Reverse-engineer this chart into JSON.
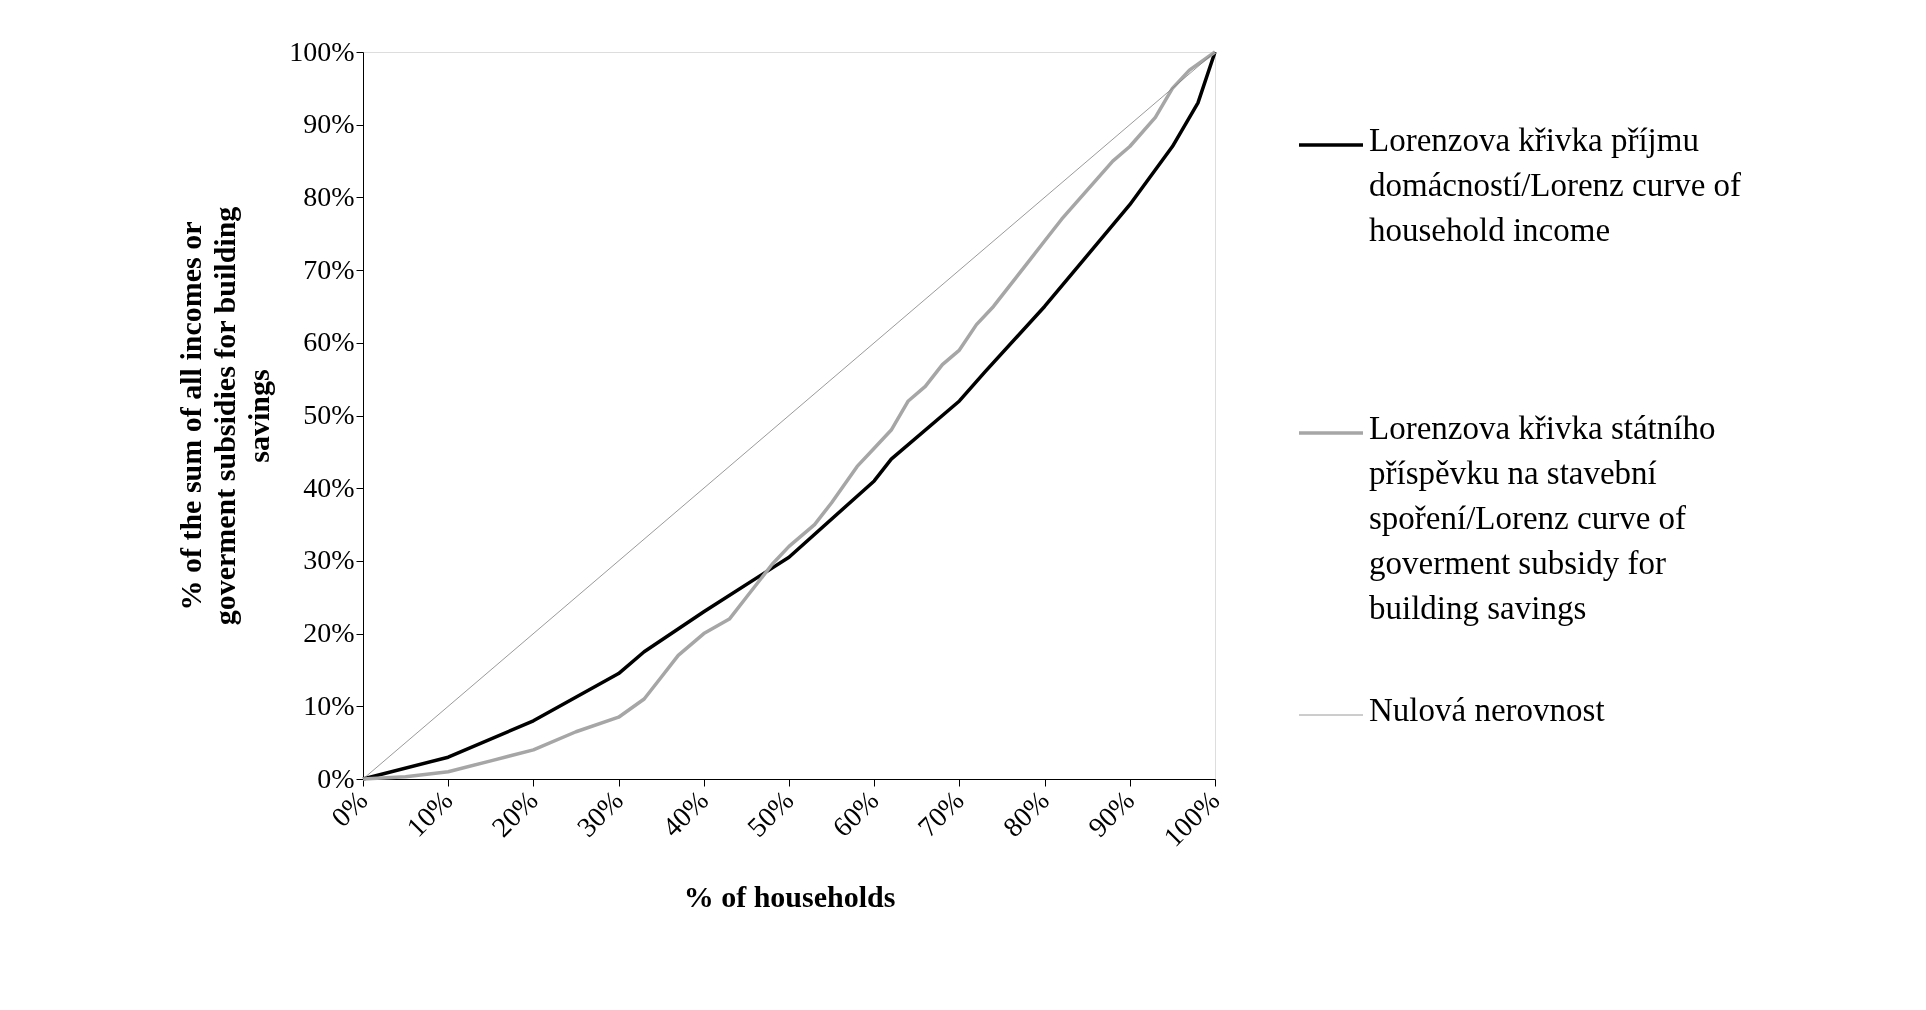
{
  "chart_data": {
    "type": "line",
    "xlabel": "% of  households",
    "ylabel": "% of the sum of  all incomes or goverment subsidies for building savings",
    "xlim": [
      0,
      100
    ],
    "ylim": [
      0,
      100
    ],
    "xticks": [
      {
        "value": 0,
        "label": "0%"
      },
      {
        "value": 10,
        "label": "10%"
      },
      {
        "value": 20,
        "label": "20%"
      },
      {
        "value": 30,
        "label": "30%"
      },
      {
        "value": 40,
        "label": "40%"
      },
      {
        "value": 50,
        "label": "50%"
      },
      {
        "value": 60,
        "label": "60%"
      },
      {
        "value": 70,
        "label": "70%"
      },
      {
        "value": 80,
        "label": "80%"
      },
      {
        "value": 90,
        "label": "90%"
      },
      {
        "value": 100,
        "label": "100%"
      }
    ],
    "yticks": [
      {
        "value": 0,
        "label": "0%"
      },
      {
        "value": 10,
        "label": "10%"
      },
      {
        "value": 20,
        "label": "20%"
      },
      {
        "value": 30,
        "label": "30%"
      },
      {
        "value": 40,
        "label": "40%"
      },
      {
        "value": 50,
        "label": "50%"
      },
      {
        "value": 60,
        "label": "60%"
      },
      {
        "value": 70,
        "label": "70%"
      },
      {
        "value": 80,
        "label": "80%"
      },
      {
        "value": 90,
        "label": "90%"
      },
      {
        "value": 100,
        "label": "100%"
      }
    ],
    "grid": false,
    "legend": "right",
    "marker": "none",
    "line_style": "solid",
    "series": [
      {
        "name": "Lorenzova křivka příjmu domácností/Lorenz curve of household income",
        "color": "#000000",
        "x": [
          0,
          10,
          20,
          30,
          33,
          40,
          50,
          60,
          62,
          70,
          73,
          80,
          90,
          95,
          98,
          100
        ],
        "values": [
          0,
          3,
          8,
          14.5,
          17.5,
          23,
          30.5,
          41,
          44,
          52,
          56,
          65,
          79,
          87,
          93,
          100
        ]
      },
      {
        "name": "Lorenzova křivka státního příspěvku na stavební spoření/Lorenz curve of goverment subsidy for building savings",
        "color": "#a6a6a6",
        "x": [
          0,
          5,
          10,
          15,
          20,
          25,
          30,
          33,
          35,
          37,
          40,
          43,
          45,
          48,
          50,
          53,
          55,
          58,
          60,
          62,
          64,
          66,
          68,
          70,
          72,
          74,
          76,
          78,
          80,
          82,
          85,
          88,
          90,
          93,
          95,
          97,
          100
        ],
        "values": [
          0,
          0.3,
          1,
          2.5,
          4,
          6.5,
          8.5,
          11,
          14,
          17,
          20,
          22,
          25,
          29.5,
          32,
          35,
          38,
          43,
          45.5,
          48,
          52,
          54,
          57,
          59,
          62.5,
          65,
          68,
          71,
          74,
          77,
          81,
          85,
          87,
          91,
          95,
          97.5,
          100
        ]
      },
      {
        "name": "Nulová nerovnost",
        "color": "#808080",
        "x": [
          0,
          100
        ],
        "values": [
          0,
          100
        ]
      }
    ]
  }
}
